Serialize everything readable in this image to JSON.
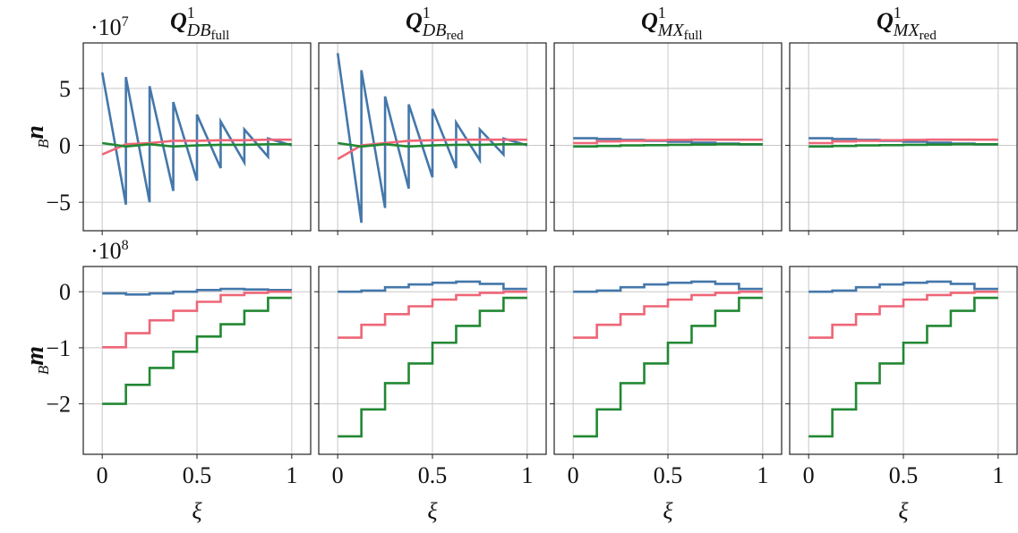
{
  "chart_data": [
    {
      "type": "line",
      "title": {
        "base": "Q",
        "sup": "1",
        "sub": "DB",
        "subsub": "full"
      },
      "ylabel": {
        "pre": "B",
        "main": "n"
      },
      "multiplier": {
        "base": "·10",
        "exp": "7"
      },
      "x": [
        0,
        0.125,
        0.125,
        0.25,
        0.25,
        0.375,
        0.375,
        0.5,
        0.5,
        0.625,
        0.625,
        0.75,
        0.75,
        0.875,
        0.875,
        1
      ],
      "xlim": [
        -0.1,
        1.1
      ],
      "xticks": [
        0,
        0.5,
        1
      ],
      "show_xtick_labels": false,
      "ylim": [
        -7.5,
        9
      ],
      "yticks": [
        {
          "value": -5,
          "label": "−5"
        },
        0,
        5
      ],
      "show_ytick_labels": true,
      "grid": true,
      "series": [
        {
          "color": "#4477aa",
          "values": [
            6.4,
            -5.2,
            6.0,
            -5.0,
            5.2,
            -4.0,
            3.8,
            -3.1,
            2.7,
            -2.0,
            2.1,
            -1.5,
            1.4,
            -1.0,
            0.6,
            0.0
          ]
        },
        {
          "color": "#ee6677",
          "values": [
            -0.8,
            0.1,
            0.1,
            0.2,
            0.2,
            0.4,
            0.4,
            0.4,
            0.4,
            0.45,
            0.45,
            0.45,
            0.45,
            0.5,
            0.5,
            0.5
          ]
        },
        {
          "color": "#228833",
          "values": [
            0.2,
            -0.1,
            -0.1,
            0.1,
            0.1,
            -0.1,
            -0.1,
            0.0,
            0.0,
            0.05,
            0.05,
            0.05,
            0.05,
            0.1,
            0.1,
            0.1
          ]
        }
      ]
    },
    {
      "type": "line",
      "title": {
        "base": "Q",
        "sup": "1",
        "sub": "DB",
        "subsub": "red"
      },
      "x": [
        0,
        0.125,
        0.125,
        0.25,
        0.25,
        0.375,
        0.375,
        0.5,
        0.5,
        0.625,
        0.625,
        0.75,
        0.75,
        0.875,
        0.875,
        1
      ],
      "xlim": [
        -0.1,
        1.1
      ],
      "xticks": [
        0,
        0.5,
        1
      ],
      "show_xtick_labels": false,
      "ylim": [
        -7.5,
        9
      ],
      "yticks": [
        -5,
        0,
        5
      ],
      "show_ytick_labels": false,
      "grid": true,
      "series": [
        {
          "color": "#4477aa",
          "values": [
            8.1,
            -6.8,
            6.6,
            -5.5,
            4.3,
            -3.8,
            3.6,
            -2.8,
            3.2,
            -2.0,
            2.0,
            -1.3,
            1.4,
            -0.8,
            0.6,
            0.0
          ]
        },
        {
          "color": "#ee6677",
          "values": [
            -1.2,
            0.0,
            0.0,
            0.2,
            0.2,
            0.4,
            0.4,
            0.45,
            0.45,
            0.5,
            0.5,
            0.5,
            0.5,
            0.5,
            0.5,
            0.5
          ]
        },
        {
          "color": "#228833",
          "values": [
            0.2,
            -0.1,
            -0.1,
            0.1,
            0.1,
            -0.1,
            -0.1,
            0.0,
            0.0,
            0.05,
            0.05,
            0.05,
            0.05,
            0.1,
            0.1,
            0.1
          ]
        }
      ]
    },
    {
      "type": "line",
      "title": {
        "base": "Q",
        "sup": "1",
        "sub": "MX",
        "subsub": "full"
      },
      "x": [
        0,
        0.125,
        0.125,
        0.25,
        0.25,
        0.375,
        0.375,
        0.5,
        0.5,
        0.625,
        0.625,
        0.75,
        0.75,
        0.875,
        0.875,
        1
      ],
      "xlim": [
        -0.1,
        1.1
      ],
      "xticks": [
        0,
        0.5,
        1
      ],
      "show_xtick_labels": false,
      "ylim": [
        -7.5,
        9
      ],
      "yticks": [
        -5,
        0,
        5
      ],
      "show_ytick_labels": false,
      "grid": true,
      "series": [
        {
          "color": "#4477aa",
          "values": [
            0.63,
            0.63,
            0.56,
            0.56,
            0.48,
            0.48,
            0.4,
            0.4,
            0.32,
            0.32,
            0.24,
            0.24,
            0.16,
            0.16,
            0.08,
            0.08
          ]
        },
        {
          "color": "#ee6677",
          "values": [
            0.2,
            0.2,
            0.35,
            0.35,
            0.4,
            0.4,
            0.45,
            0.45,
            0.48,
            0.48,
            0.5,
            0.5,
            0.5,
            0.5,
            0.5,
            0.5
          ]
        },
        {
          "color": "#228833",
          "values": [
            -0.1,
            -0.1,
            -0.05,
            -0.05,
            0,
            0,
            0.02,
            0.02,
            0.05,
            0.05,
            0.07,
            0.07,
            0.1,
            0.1,
            0.1,
            0.1
          ]
        }
      ]
    },
    {
      "type": "line",
      "title": {
        "base": "Q",
        "sup": "1",
        "sub": "MX",
        "subsub": "red"
      },
      "x": [
        0,
        0.125,
        0.125,
        0.25,
        0.25,
        0.375,
        0.375,
        0.5,
        0.5,
        0.625,
        0.625,
        0.75,
        0.75,
        0.875,
        0.875,
        1
      ],
      "xlim": [
        -0.1,
        1.1
      ],
      "xticks": [
        0,
        0.5,
        1
      ],
      "show_xtick_labels": false,
      "ylim": [
        -7.5,
        9
      ],
      "yticks": [
        -5,
        0,
        5
      ],
      "show_ytick_labels": false,
      "grid": true,
      "series": [
        {
          "color": "#4477aa",
          "values": [
            0.63,
            0.63,
            0.56,
            0.56,
            0.48,
            0.48,
            0.4,
            0.4,
            0.32,
            0.32,
            0.24,
            0.24,
            0.16,
            0.16,
            0.08,
            0.08
          ]
        },
        {
          "color": "#ee6677",
          "values": [
            0.2,
            0.2,
            0.35,
            0.35,
            0.4,
            0.4,
            0.45,
            0.45,
            0.48,
            0.48,
            0.5,
            0.5,
            0.5,
            0.5,
            0.5,
            0.5
          ]
        },
        {
          "color": "#228833",
          "values": [
            -0.1,
            -0.1,
            -0.05,
            -0.05,
            0,
            0,
            0.02,
            0.02,
            0.05,
            0.05,
            0.07,
            0.07,
            0.1,
            0.1,
            0.1,
            0.1
          ]
        }
      ]
    },
    {
      "type": "line",
      "ylabel": {
        "pre": "B",
        "main": "m"
      },
      "multiplier": {
        "base": "·10",
        "exp": "8"
      },
      "xlabel": "ξ",
      "x": [
        0,
        0.125,
        0.125,
        0.25,
        0.25,
        0.375,
        0.375,
        0.5,
        0.5,
        0.625,
        0.625,
        0.75,
        0.75,
        0.875,
        0.875,
        1
      ],
      "xlim": [
        -0.1,
        1.1
      ],
      "xticks": [
        0,
        0.5,
        1
      ],
      "show_xtick_labels": true,
      "ylim": [
        -2.9,
        0.45
      ],
      "yticks": [
        {
          "value": -2,
          "label": "−2"
        },
        {
          "value": -1,
          "label": "−1"
        },
        0
      ],
      "show_ytick_labels": true,
      "grid": true,
      "series": [
        {
          "color": "#4477aa",
          "values": [
            -0.03,
            -0.03,
            -0.05,
            -0.05,
            -0.03,
            -0.03,
            0,
            0,
            0.03,
            0.03,
            0.05,
            0.05,
            0.04,
            0.04,
            0.03,
            0.03
          ]
        },
        {
          "color": "#ee6677",
          "values": [
            -0.99,
            -0.99,
            -0.74,
            -0.74,
            -0.51,
            -0.51,
            -0.34,
            -0.34,
            -0.18,
            -0.18,
            -0.06,
            -0.06,
            -0.02,
            -0.02,
            0,
            0
          ]
        },
        {
          "color": "#228833",
          "values": [
            -2.0,
            -2.0,
            -1.66,
            -1.66,
            -1.36,
            -1.36,
            -1.07,
            -1.07,
            -0.8,
            -0.8,
            -0.58,
            -0.58,
            -0.34,
            -0.34,
            -0.11,
            -0.11
          ]
        }
      ]
    },
    {
      "type": "line",
      "xlabel": "ξ",
      "x": [
        0,
        0.125,
        0.125,
        0.25,
        0.25,
        0.375,
        0.375,
        0.5,
        0.5,
        0.625,
        0.625,
        0.75,
        0.75,
        0.875,
        0.875,
        1
      ],
      "xlim": [
        -0.1,
        1.1
      ],
      "xticks": [
        0,
        0.5,
        1
      ],
      "show_xtick_labels": true,
      "ylim": [
        -2.9,
        0.45
      ],
      "yticks": [
        -2,
        -1,
        0
      ],
      "show_ytick_labels": false,
      "grid": true,
      "series": [
        {
          "color": "#4477aa",
          "values": [
            0,
            0,
            0.02,
            0.02,
            0.08,
            0.08,
            0.13,
            0.13,
            0.16,
            0.16,
            0.18,
            0.18,
            0.14,
            0.14,
            0.05,
            0.05
          ]
        },
        {
          "color": "#ee6677",
          "values": [
            -0.82,
            -0.82,
            -0.59,
            -0.59,
            -0.4,
            -0.4,
            -0.26,
            -0.26,
            -0.14,
            -0.14,
            -0.06,
            -0.06,
            -0.02,
            -0.02,
            0,
            0
          ]
        },
        {
          "color": "#228833",
          "values": [
            -2.58,
            -2.58,
            -2.1,
            -2.1,
            -1.63,
            -1.63,
            -1.28,
            -1.28,
            -0.91,
            -0.91,
            -0.61,
            -0.61,
            -0.34,
            -0.34,
            -0.11,
            -0.11
          ]
        }
      ]
    },
    {
      "type": "line",
      "xlabel": "ξ",
      "x": [
        0,
        0.125,
        0.125,
        0.25,
        0.25,
        0.375,
        0.375,
        0.5,
        0.5,
        0.625,
        0.625,
        0.75,
        0.75,
        0.875,
        0.875,
        1
      ],
      "xlim": [
        -0.1,
        1.1
      ],
      "xticks": [
        0,
        0.5,
        1
      ],
      "show_xtick_labels": true,
      "ylim": [
        -2.9,
        0.45
      ],
      "yticks": [
        -2,
        -1,
        0
      ],
      "show_ytick_labels": false,
      "grid": true,
      "series": [
        {
          "color": "#4477aa",
          "values": [
            0,
            0,
            0.02,
            0.02,
            0.08,
            0.08,
            0.13,
            0.13,
            0.16,
            0.16,
            0.18,
            0.18,
            0.14,
            0.14,
            0.05,
            0.05
          ]
        },
        {
          "color": "#ee6677",
          "values": [
            -0.82,
            -0.82,
            -0.59,
            -0.59,
            -0.4,
            -0.4,
            -0.26,
            -0.26,
            -0.14,
            -0.14,
            -0.06,
            -0.06,
            -0.02,
            -0.02,
            0,
            0
          ]
        },
        {
          "color": "#228833",
          "values": [
            -2.58,
            -2.58,
            -2.1,
            -2.1,
            -1.63,
            -1.63,
            -1.28,
            -1.28,
            -0.91,
            -0.91,
            -0.61,
            -0.61,
            -0.34,
            -0.34,
            -0.11,
            -0.11
          ]
        }
      ]
    },
    {
      "type": "line",
      "xlabel": "ξ",
      "x": [
        0,
        0.125,
        0.125,
        0.25,
        0.25,
        0.375,
        0.375,
        0.5,
        0.5,
        0.625,
        0.625,
        0.75,
        0.75,
        0.875,
        0.875,
        1
      ],
      "xlim": [
        -0.1,
        1.1
      ],
      "xticks": [
        0,
        0.5,
        1
      ],
      "show_xtick_labels": true,
      "ylim": [
        -2.9,
        0.45
      ],
      "yticks": [
        -2,
        -1,
        0
      ],
      "show_ytick_labels": false,
      "grid": true,
      "series": [
        {
          "color": "#4477aa",
          "values": [
            0,
            0,
            0.02,
            0.02,
            0.08,
            0.08,
            0.13,
            0.13,
            0.16,
            0.16,
            0.18,
            0.18,
            0.14,
            0.14,
            0.05,
            0.05
          ]
        },
        {
          "color": "#ee6677",
          "values": [
            -0.82,
            -0.82,
            -0.59,
            -0.59,
            -0.4,
            -0.4,
            -0.26,
            -0.26,
            -0.14,
            -0.14,
            -0.06,
            -0.06,
            -0.02,
            -0.02,
            0,
            0
          ]
        },
        {
          "color": "#228833",
          "values": [
            -2.58,
            -2.58,
            -2.1,
            -2.1,
            -1.63,
            -1.63,
            -1.28,
            -1.28,
            -0.91,
            -0.91,
            -0.61,
            -0.61,
            -0.34,
            -0.34,
            -0.11,
            -0.11
          ]
        }
      ]
    }
  ]
}
